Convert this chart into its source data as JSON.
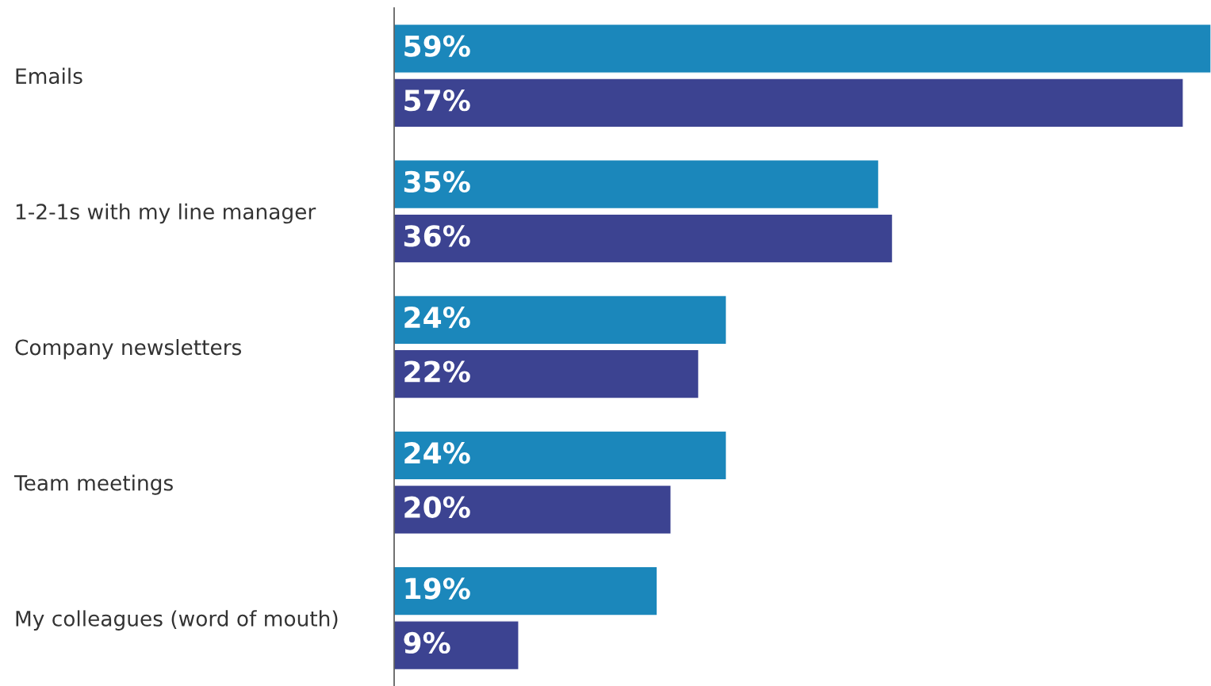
{
  "chart_data": {
    "type": "bar",
    "orientation": "horizontal",
    "categories": [
      "Emails",
      "1-2-1s with my line manager",
      "Company newsletters",
      "Team meetings",
      "My colleagues (word of mouth)"
    ],
    "xlim": [
      0,
      59
    ],
    "series": [
      {
        "color": "#1b87bb",
        "values": [
          59,
          35,
          24,
          24,
          19
        ],
        "value_labels": [
          "59%",
          "35%",
          "24%",
          "24%",
          "19%"
        ]
      },
      {
        "color": "#3c4391",
        "values": [
          57,
          36,
          22,
          20,
          9
        ],
        "value_labels": [
          "57%",
          "36%",
          "22%",
          "20%",
          "9%"
        ]
      }
    ],
    "grid": false,
    "tick_labels": "y"
  }
}
